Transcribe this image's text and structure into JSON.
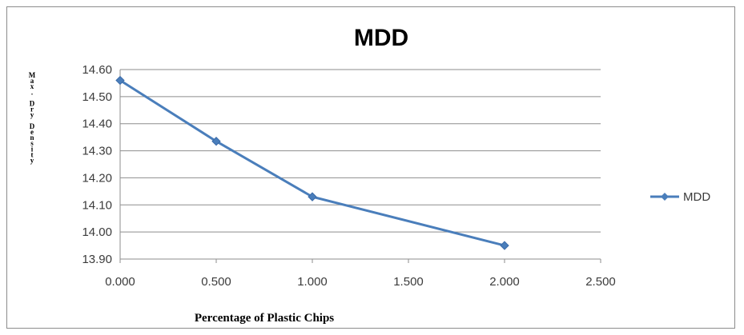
{
  "chart_data": {
    "type": "line",
    "title": "MDD",
    "xlabel": "Percentage of Plastic Chips",
    "ylabel": "Max. Dry Density",
    "xlim": [
      0,
      2.5
    ],
    "ylim": [
      13.9,
      14.6
    ],
    "x_ticks": [
      "0.000",
      "0.500",
      "1.000",
      "1.500",
      "2.000",
      "2.500"
    ],
    "y_ticks": [
      "13.90",
      "14.00",
      "14.10",
      "14.20",
      "14.30",
      "14.40",
      "14.50",
      "14.60"
    ],
    "grid": "horizontal",
    "legend_position": "right",
    "series": [
      {
        "name": "MDD",
        "x": [
          0.0,
          0.5,
          1.0,
          2.0
        ],
        "y": [
          14.56,
          14.335,
          14.13,
          13.95
        ],
        "color": "#4a7ebb"
      }
    ]
  }
}
